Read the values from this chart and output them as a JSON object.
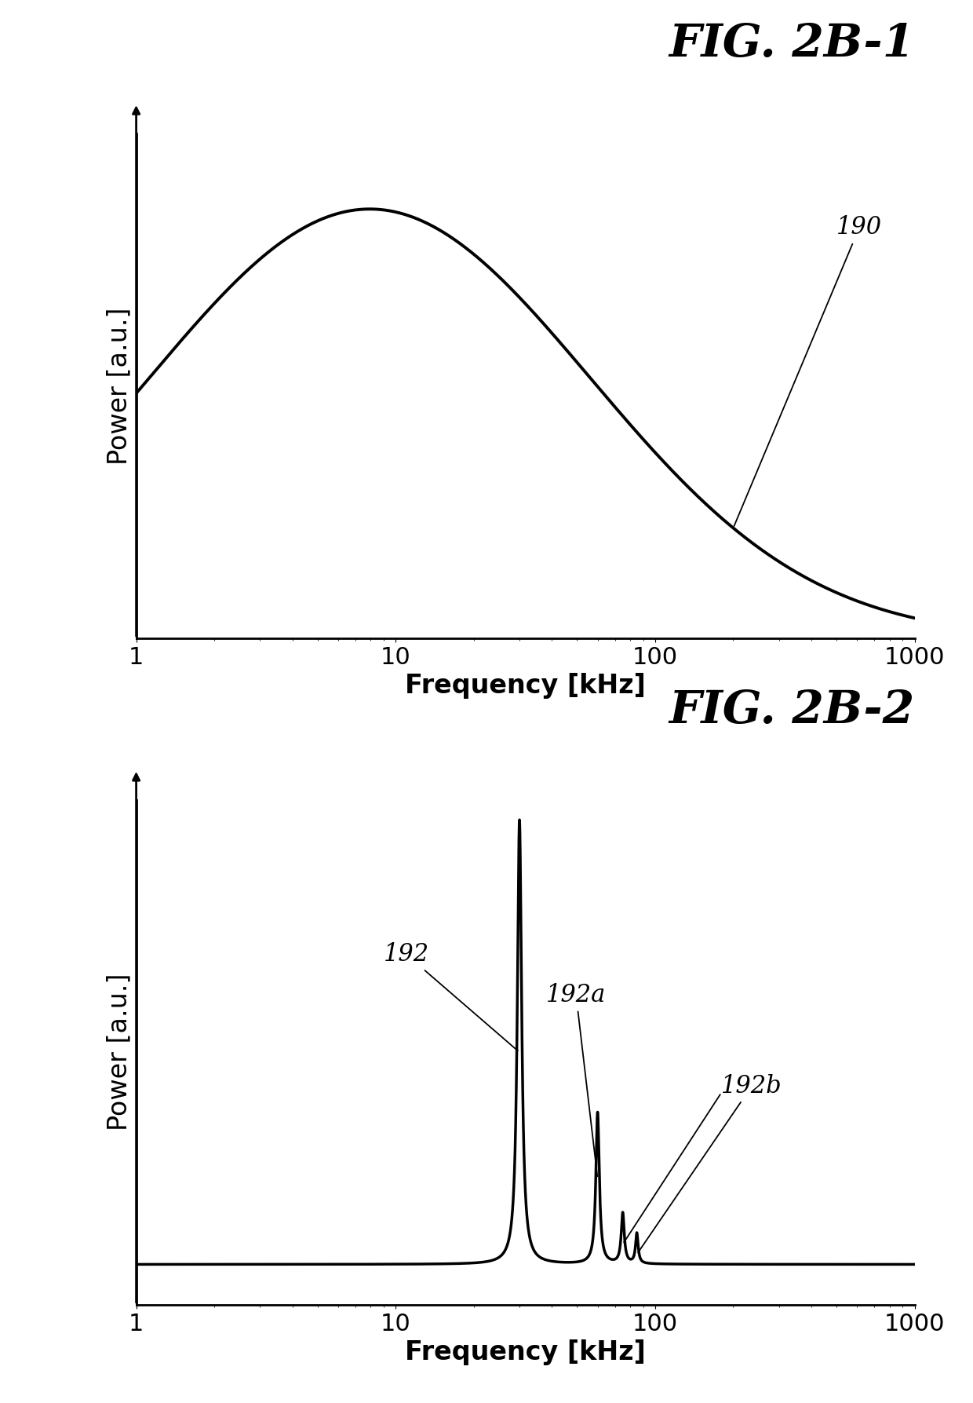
{
  "fig_title1": "FIG. 2B-1",
  "fig_title2": "FIG. 2B-2",
  "xlabel": "Frequency [kHz]",
  "ylabel": "Power [a.u.]",
  "xticks": [
    1,
    10,
    100,
    1000
  ],
  "xticklabels": [
    "1",
    "10",
    "100",
    "1000"
  ],
  "background_color": "#ffffff",
  "line_color": "#000000",
  "title_fontsize": 42,
  "label_fontsize": 24,
  "tick_fontsize": 22,
  "annotation_fontsize": 22,
  "label1": "190",
  "label2_1": "192",
  "label2_2": "192a",
  "label2_3": "192b"
}
